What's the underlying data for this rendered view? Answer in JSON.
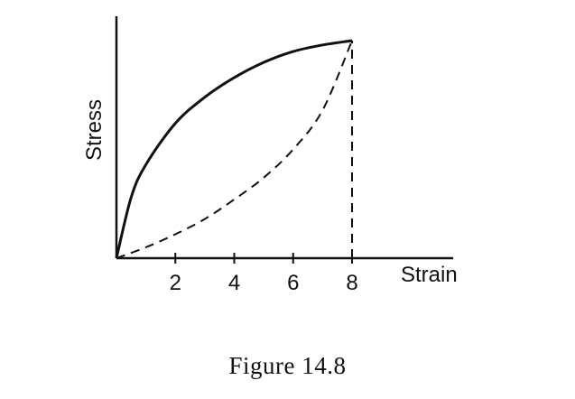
{
  "caption": "Figure 14.8",
  "chart_data": {
    "type": "line",
    "xlabel": "Strain",
    "ylabel": "Stress",
    "xlim": [
      0,
      8
    ],
    "xticks": [
      2,
      4,
      6,
      8
    ],
    "y_tick_labels": false,
    "grid": false,
    "series": [
      {
        "line_style": "solid",
        "x": [
          0,
          0.5,
          1,
          2,
          3,
          4,
          5,
          6,
          7,
          8
        ],
        "y": [
          0,
          0.28,
          0.43,
          0.62,
          0.74,
          0.83,
          0.9,
          0.95,
          0.98,
          1.0
        ]
      },
      {
        "line_style": "dashed",
        "x": [
          0,
          1,
          2,
          3,
          4,
          5,
          6,
          7,
          8
        ],
        "y": [
          0,
          0.05,
          0.11,
          0.18,
          0.27,
          0.37,
          0.5,
          0.68,
          1.0
        ]
      }
    ],
    "annotations": [
      {
        "line_style": "dashed",
        "from": [
          8,
          0
        ],
        "to": [
          8,
          1.0
        ]
      }
    ]
  }
}
